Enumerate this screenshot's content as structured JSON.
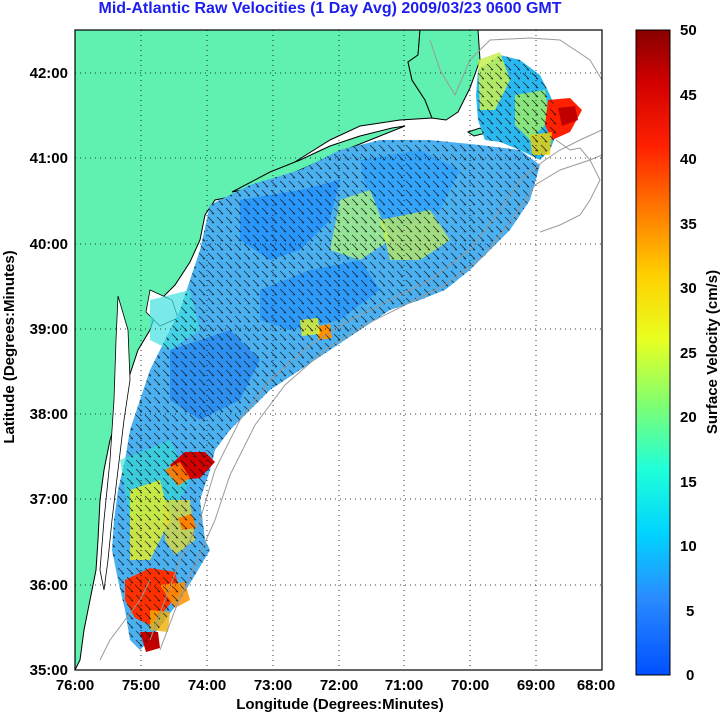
{
  "title": "Mid-Atlantic Raw Velocities (1 Day Avg) 2009/03/23 0600 GMT",
  "colors": {
    "land": "#60f0b0",
    "coast": "#000000",
    "bathymetry": "#9a9a9a",
    "title": "#1d1df0",
    "grid": "#000000"
  },
  "map": {
    "xlabel": "Longitude (Degrees:Minutes)",
    "ylabel": "Latitude (Degrees:Minutes)",
    "x_ticks": [
      "76:00",
      "75:00",
      "74:00",
      "73:00",
      "72:00",
      "71:00",
      "70:00",
      "69:00",
      "68:00"
    ],
    "y_ticks": [
      "42:00",
      "41:00",
      "40:00",
      "39:00",
      "38:00",
      "37:00",
      "36:00",
      "35:00"
    ],
    "lon_range": [
      -76,
      -68
    ],
    "lat_range": [
      35,
      42.5
    ],
    "grid": "dotted"
  },
  "colorbar": {
    "label": "Surface Velocity (cm/s)",
    "ticks": [
      "50",
      "45",
      "40",
      "35",
      "30",
      "25",
      "20",
      "15",
      "10",
      "5",
      "0"
    ],
    "range": [
      0,
      50
    ]
  }
}
